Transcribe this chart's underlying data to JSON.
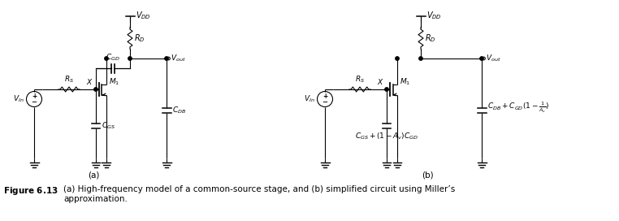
{
  "title": "Figure 6.13",
  "caption": "   (a) High-frequency model of a common-source stage, and (b) simplified circuit using Miller’s approximation.",
  "caption2": "approximation.",
  "background_color": "#ffffff",
  "line_color": "#000000",
  "label_a": "(a)",
  "label_b": "(b)",
  "fig_width": 7.62,
  "fig_height": 2.72,
  "dpi": 100
}
